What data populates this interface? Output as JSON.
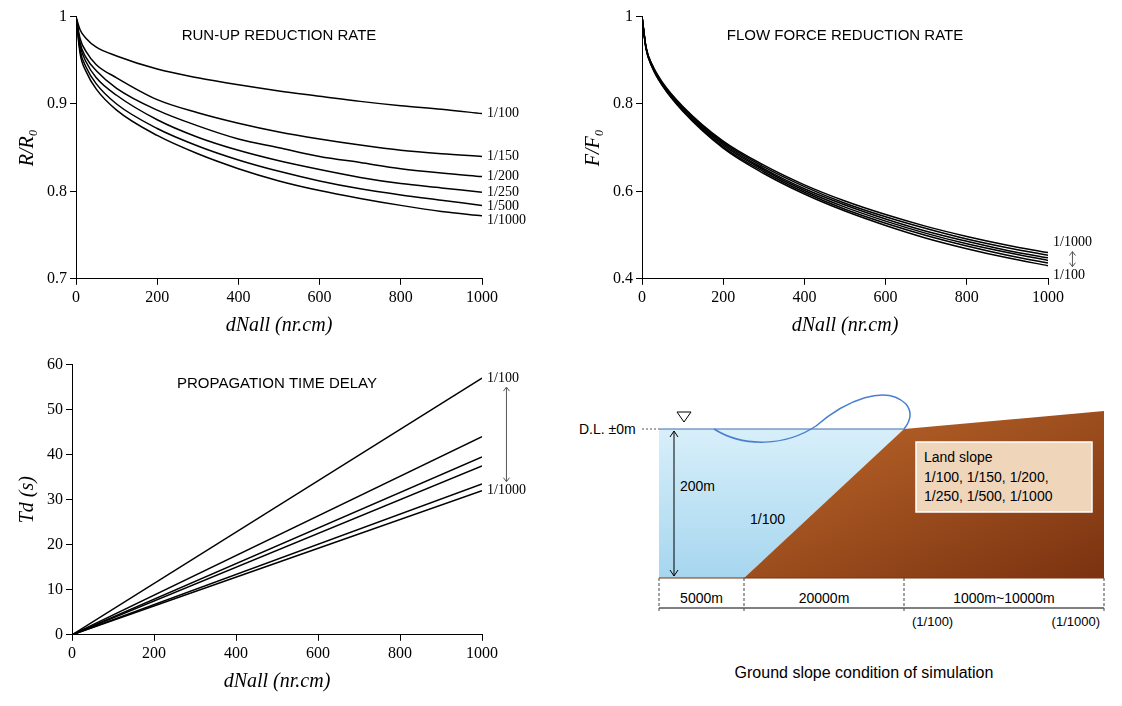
{
  "chart_data": [
    {
      "type": "line",
      "title": "RUN-UP REDUCTION RATE",
      "x_label": "dNall (nr.cm)",
      "y_label": "R/R₀",
      "x": [
        0,
        10,
        25,
        50,
        100,
        200,
        300,
        400,
        500,
        600,
        700,
        800,
        900,
        1000
      ],
      "series": [
        {
          "name": "1/100",
          "color": "#000000",
          "values": [
            1,
            0.985,
            0.975,
            0.965,
            0.955,
            0.94,
            0.93,
            0.922,
            0.915,
            0.909,
            0.903,
            0.898,
            0.894,
            0.889
          ]
        },
        {
          "name": "1/150",
          "color": "#000000",
          "values": [
            1,
            0.975,
            0.96,
            0.945,
            0.93,
            0.905,
            0.89,
            0.878,
            0.868,
            0.86,
            0.853,
            0.847,
            0.843,
            0.84
          ]
        },
        {
          "name": "1/200",
          "color": "#000000",
          "values": [
            1,
            0.97,
            0.953,
            0.938,
            0.918,
            0.893,
            0.875,
            0.86,
            0.85,
            0.84,
            0.833,
            0.826,
            0.821,
            0.817
          ]
        },
        {
          "name": "1/250",
          "color": "#000000",
          "values": [
            1,
            0.967,
            0.948,
            0.93,
            0.91,
            0.882,
            0.862,
            0.847,
            0.835,
            0.825,
            0.816,
            0.809,
            0.804,
            0.799
          ]
        },
        {
          "name": "1/500",
          "color": "#000000",
          "values": [
            1,
            0.962,
            0.942,
            0.923,
            0.9,
            0.872,
            0.852,
            0.836,
            0.823,
            0.812,
            0.803,
            0.796,
            0.79,
            0.784
          ]
        },
        {
          "name": "1/1000",
          "color": "#000000",
          "values": [
            1,
            0.958,
            0.937,
            0.917,
            0.893,
            0.864,
            0.843,
            0.826,
            0.812,
            0.801,
            0.792,
            0.784,
            0.777,
            0.772
          ]
        }
      ],
      "xlim": [
        0,
        1000
      ],
      "xticks": [
        0,
        200,
        400,
        600,
        800,
        1000
      ],
      "ylim": [
        0.7,
        1
      ],
      "yticks": [
        0.7,
        0.8,
        0.9,
        1
      ],
      "grid": false
    },
    {
      "type": "line",
      "title": "FLOW FORCE REDUCTION RATE",
      "x_label": "dNall (nr.cm)",
      "y_label": "F/F₀",
      "x": [
        0,
        10,
        25,
        50,
        100,
        200,
        300,
        400,
        500,
        600,
        700,
        800,
        900,
        1000
      ],
      "series": [
        {
          "color": "#000000",
          "values": [
            1,
            0.93,
            0.89,
            0.85,
            0.795,
            0.715,
            0.66,
            0.615,
            0.578,
            0.547,
            0.52,
            0.497,
            0.477,
            0.46
          ]
        },
        {
          "color": "#000000",
          "values": [
            1,
            0.929,
            0.889,
            0.848,
            0.793,
            0.712,
            0.656,
            0.611,
            0.573,
            0.542,
            0.515,
            0.491,
            0.471,
            0.454
          ]
        },
        {
          "color": "#000000",
          "values": [
            1,
            0.928,
            0.888,
            0.847,
            0.79,
            0.709,
            0.652,
            0.606,
            0.569,
            0.537,
            0.509,
            0.486,
            0.465,
            0.448
          ]
        },
        {
          "color": "#000000",
          "values": [
            1,
            0.928,
            0.886,
            0.845,
            0.788,
            0.706,
            0.649,
            0.602,
            0.564,
            0.532,
            0.504,
            0.48,
            0.46,
            0.442
          ]
        },
        {
          "color": "#000000",
          "values": [
            1,
            0.927,
            0.885,
            0.843,
            0.786,
            0.702,
            0.645,
            0.598,
            0.559,
            0.527,
            0.499,
            0.475,
            0.454,
            0.436
          ]
        },
        {
          "color": "#000000",
          "values": [
            1,
            0.926,
            0.884,
            0.842,
            0.784,
            0.699,
            0.641,
            0.594,
            0.555,
            0.522,
            0.493,
            0.469,
            0.448,
            0.43
          ]
        }
      ],
      "annotations": [
        "1/1000",
        "1/100"
      ],
      "xlim": [
        0,
        1000
      ],
      "xticks": [
        0,
        200,
        400,
        600,
        800,
        1000
      ],
      "ylim": [
        0.4,
        1
      ],
      "yticks": [
        0.4,
        0.6,
        0.8,
        1
      ],
      "grid": false
    },
    {
      "type": "line",
      "title": "PROPAGATION TIME DELAY",
      "x_label": "dNall (nr.cm)",
      "y_label": "Td (s)",
      "x": [
        0,
        1000
      ],
      "series": [
        {
          "color": "#000000",
          "values": [
            0,
            57
          ]
        },
        {
          "color": "#000000",
          "values": [
            0,
            44
          ]
        },
        {
          "color": "#000000",
          "values": [
            0,
            39.5
          ]
        },
        {
          "color": "#000000",
          "values": [
            0,
            37.5
          ]
        },
        {
          "color": "#000000",
          "values": [
            0,
            33.5
          ]
        },
        {
          "color": "#000000",
          "values": [
            0,
            32
          ]
        }
      ],
      "annotations": [
        "1/100",
        "1/1000"
      ],
      "xlim": [
        0,
        1000
      ],
      "xticks": [
        0,
        200,
        400,
        600,
        800,
        1000
      ],
      "ylim": [
        0,
        60
      ],
      "yticks": [
        0,
        10,
        20,
        30,
        40,
        50,
        60
      ],
      "grid": false
    }
  ],
  "diagram": {
    "water_level_label": "D.L. ±0m",
    "depth_label": "200m",
    "sea_slope_label": "1/100",
    "land_slope_title": "Land slope",
    "land_slopes": "1/100, 1/150, 1/200, 1/250, 1/500, 1/1000",
    "dimensions": [
      "5000m",
      "20000m",
      "1000m~10000m"
    ],
    "land_length_notes": [
      "(1/100)",
      "(1/1000)"
    ],
    "caption": "Ground slope condition of simulation"
  }
}
